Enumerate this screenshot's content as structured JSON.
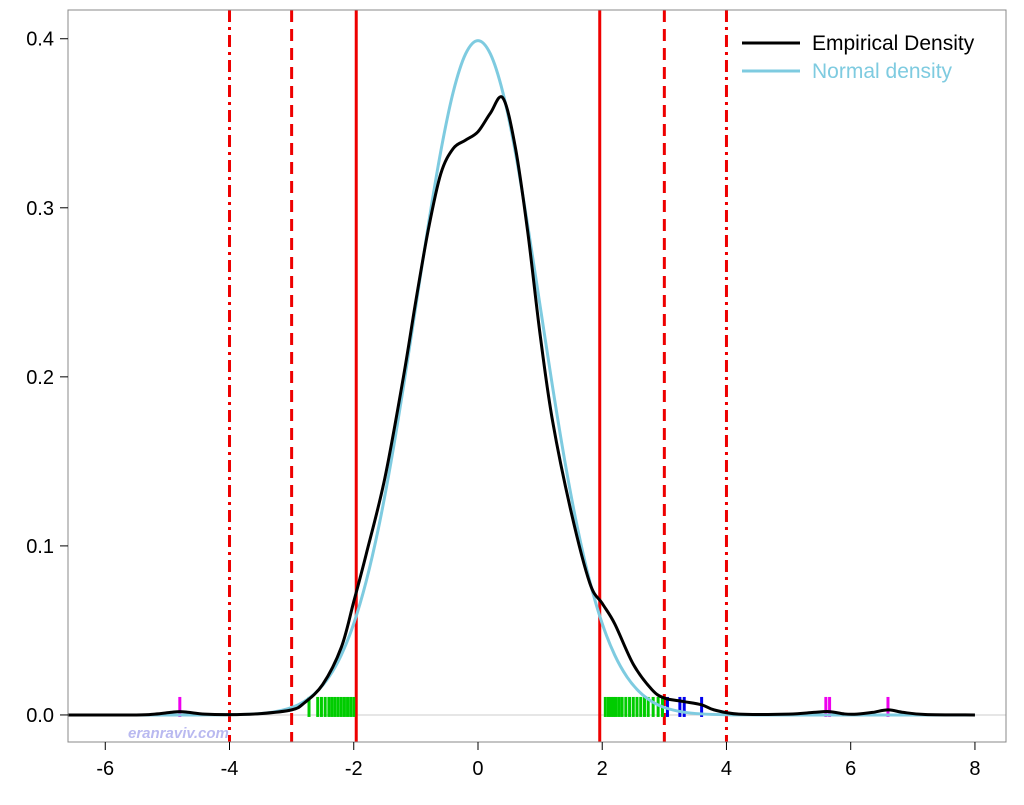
{
  "chart_data": {
    "type": "line",
    "title": "",
    "xlabel": "",
    "ylabel": "",
    "xlim": [
      -6.6,
      8.5
    ],
    "ylim": [
      -0.016,
      0.417
    ],
    "x_ticks": [
      -6,
      -4,
      -2,
      0,
      2,
      4,
      6,
      8
    ],
    "x_tick_labels": [
      "-6",
      "-4",
      "-2",
      "0",
      "2",
      "4",
      "6",
      "8"
    ],
    "y_ticks": [
      0.0,
      0.1,
      0.2,
      0.3,
      0.4
    ],
    "y_tick_labels": [
      "0.0",
      "0.1",
      "0.2",
      "0.3",
      "0.4"
    ],
    "grid": false,
    "legend_position": "top-right",
    "colors": {
      "empirical": "#000000",
      "normal": "#7ecbe0",
      "vlines": "#ee0000",
      "rug_green": "#00cc00",
      "rug_blue": "#0000ee",
      "rug_magenta": "#ee00ee",
      "zero_line": "#cccccc",
      "watermark": "#b9b9f0"
    },
    "series": [
      {
        "name": "Empirical Density",
        "color": "#000000",
        "x": [
          -6.6,
          -5.5,
          -5.2,
          -4.95,
          -4.8,
          -4.65,
          -4.4,
          -4.0,
          -3.5,
          -3.0,
          -2.8,
          -2.5,
          -2.2,
          -2.0,
          -1.8,
          -1.5,
          -1.2,
          -1.0,
          -0.8,
          -0.6,
          -0.4,
          -0.2,
          0.0,
          0.2,
          0.4,
          0.6,
          0.8,
          1.0,
          1.2,
          1.5,
          1.8,
          2.0,
          2.2,
          2.5,
          2.8,
          3.0,
          3.3,
          3.6,
          3.8,
          4.2,
          5.0,
          5.4,
          5.65,
          5.9,
          6.1,
          6.35,
          6.6,
          6.85,
          7.2,
          8.0
        ],
        "y": [
          0,
          0,
          0.0005,
          0.0015,
          0.002,
          0.0015,
          0.0005,
          0.0002,
          0.0008,
          0.003,
          0.007,
          0.018,
          0.04,
          0.067,
          0.095,
          0.14,
          0.2,
          0.245,
          0.287,
          0.32,
          0.335,
          0.34,
          0.345,
          0.356,
          0.365,
          0.336,
          0.286,
          0.225,
          0.174,
          0.12,
          0.078,
          0.066,
          0.054,
          0.03,
          0.015,
          0.01,
          0.008,
          0.006,
          0.003,
          0.0005,
          0.0005,
          0.0015,
          0.002,
          0.0006,
          0.0005,
          0.0015,
          0.003,
          0.0015,
          0.0003,
          0
        ]
      },
      {
        "name": "Normal density",
        "color": "#7ecbe0",
        "x": [
          -6.6,
          -6.0,
          -5.5,
          -5.0,
          -4.5,
          -4.0,
          -3.6,
          -3.3,
          -3.0,
          -2.8,
          -2.6,
          -2.4,
          -2.2,
          -2.0,
          -1.8,
          -1.6,
          -1.4,
          -1.2,
          -1.0,
          -0.8,
          -0.6,
          -0.4,
          -0.2,
          0.0,
          0.2,
          0.4,
          0.6,
          0.8,
          1.0,
          1.2,
          1.4,
          1.6,
          1.8,
          2.0,
          2.2,
          2.4,
          2.6,
          2.8,
          3.0,
          3.3,
          3.6,
          4.0,
          4.5,
          5.0,
          5.5,
          6.0,
          6.5,
          7.0,
          7.5,
          8.0
        ],
        "y": [
          0,
          0,
          0,
          0,
          0,
          0.0001,
          0.0006,
          0.0017,
          0.0044,
          0.0079,
          0.0136,
          0.0224,
          0.0355,
          0.054,
          0.079,
          0.1109,
          0.1497,
          0.1942,
          0.242,
          0.2897,
          0.3332,
          0.3683,
          0.391,
          0.3989,
          0.391,
          0.3683,
          0.3332,
          0.2897,
          0.242,
          0.1942,
          0.1497,
          0.1109,
          0.079,
          0.054,
          0.0355,
          0.0224,
          0.0136,
          0.0079,
          0.0044,
          0.0017,
          0.0006,
          0.0001,
          0,
          0,
          0,
          0,
          0,
          0,
          0,
          0
        ]
      }
    ],
    "vertical_lines": [
      {
        "x": -1.96,
        "style": "solid",
        "color": "#ee0000"
      },
      {
        "x": 1.96,
        "style": "solid",
        "color": "#ee0000"
      },
      {
        "x": -3.0,
        "style": "dashed",
        "color": "#ee0000"
      },
      {
        "x": 3.0,
        "style": "dashed",
        "color": "#ee0000"
      },
      {
        "x": -4.0,
        "style": "dashdot",
        "color": "#ee0000"
      },
      {
        "x": 4.0,
        "style": "dashdot",
        "color": "#ee0000"
      }
    ],
    "rug": [
      {
        "color": "#00cc00",
        "x": [
          -2.72,
          -2.58,
          -2.52,
          -2.46,
          -2.4,
          -2.35,
          -2.3,
          -2.25,
          -2.2,
          -2.15,
          -2.1,
          -2.05,
          -2.0,
          2.05,
          2.1,
          2.14,
          2.18,
          2.22,
          2.27,
          2.32,
          2.38,
          2.44,
          2.5,
          2.56,
          2.62,
          2.68,
          2.74,
          2.82,
          2.9,
          2.97
        ]
      },
      {
        "color": "#0000ee",
        "x": [
          3.05,
          3.25,
          3.32,
          3.6
        ]
      },
      {
        "color": "#ee00ee",
        "x": [
          -4.8,
          5.6,
          5.66,
          6.6
        ]
      }
    ],
    "watermark": "eranraviv.com"
  }
}
